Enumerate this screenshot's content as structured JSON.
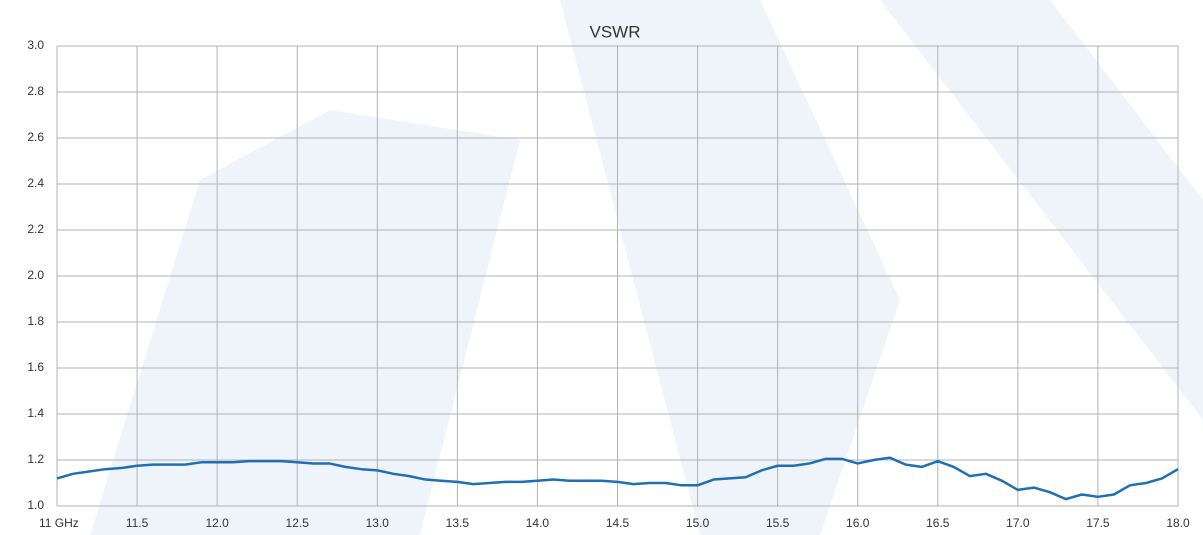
{
  "chart_data": {
    "type": "line",
    "title": "VSWR",
    "x": [
      11.0,
      11.1,
      11.2,
      11.3,
      11.4,
      11.5,
      11.6,
      11.7,
      11.8,
      11.9,
      12.0,
      12.1,
      12.2,
      12.3,
      12.4,
      12.5,
      12.6,
      12.7,
      12.8,
      12.9,
      13.0,
      13.1,
      13.2,
      13.3,
      13.4,
      13.5,
      13.6,
      13.7,
      13.8,
      13.9,
      14.0,
      14.1,
      14.2,
      14.3,
      14.4,
      14.5,
      14.6,
      14.7,
      14.8,
      14.9,
      15.0,
      15.1,
      15.2,
      15.3,
      15.4,
      15.5,
      15.6,
      15.7,
      15.8,
      15.9,
      16.0,
      16.1,
      16.2,
      16.3,
      16.4,
      16.5,
      16.6,
      16.7,
      16.8,
      16.9,
      17.0,
      17.1,
      17.2,
      17.3,
      17.4,
      17.5,
      17.6,
      17.7,
      17.8,
      17.9,
      18.0
    ],
    "series": [
      {
        "color": "#1f6fb6",
        "values": [
          1.12,
          1.14,
          1.15,
          1.16,
          1.165,
          1.175,
          1.18,
          1.18,
          1.18,
          1.19,
          1.19,
          1.19,
          1.195,
          1.195,
          1.195,
          1.19,
          1.185,
          1.185,
          1.17,
          1.16,
          1.155,
          1.14,
          1.13,
          1.115,
          1.11,
          1.105,
          1.095,
          1.1,
          1.105,
          1.105,
          1.11,
          1.115,
          1.11,
          1.11,
          1.11,
          1.105,
          1.095,
          1.1,
          1.1,
          1.09,
          1.09,
          1.115,
          1.12,
          1.125,
          1.155,
          1.175,
          1.175,
          1.185,
          1.205,
          1.205,
          1.185,
          1.2,
          1.21,
          1.18,
          1.17,
          1.195,
          1.17,
          1.13,
          1.14,
          1.11,
          1.07,
          1.08,
          1.06,
          1.03,
          1.05,
          1.04,
          1.05,
          1.09,
          1.1,
          1.12,
          1.16
        ]
      }
    ],
    "xlim": [
      11,
      18
    ],
    "xticks": [
      {
        "value": 11,
        "label": "11 GHz"
      },
      11.5,
      {
        "value": 12,
        "label": "12.0"
      },
      12.5,
      {
        "value": 13,
        "label": "13.0"
      },
      13.5,
      {
        "value": 14,
        "label": "14.0"
      },
      14.5,
      {
        "value": 15,
        "label": "15.0"
      },
      15.5,
      {
        "value": 16,
        "label": "16.0"
      },
      16.5,
      {
        "value": 17,
        "label": "17.0"
      },
      17.5,
      {
        "value": 18,
        "label": "18.0"
      }
    ],
    "ylim": [
      1,
      3
    ],
    "yticks": [
      {
        "value": 1,
        "label": "1.0"
      },
      1.2,
      1.4,
      1.6,
      1.8,
      {
        "value": 2,
        "label": "2.0"
      },
      2.2,
      2.4,
      2.6,
      2.8,
      {
        "value": 3,
        "label": "3.0"
      }
    ],
    "grid": true
  }
}
